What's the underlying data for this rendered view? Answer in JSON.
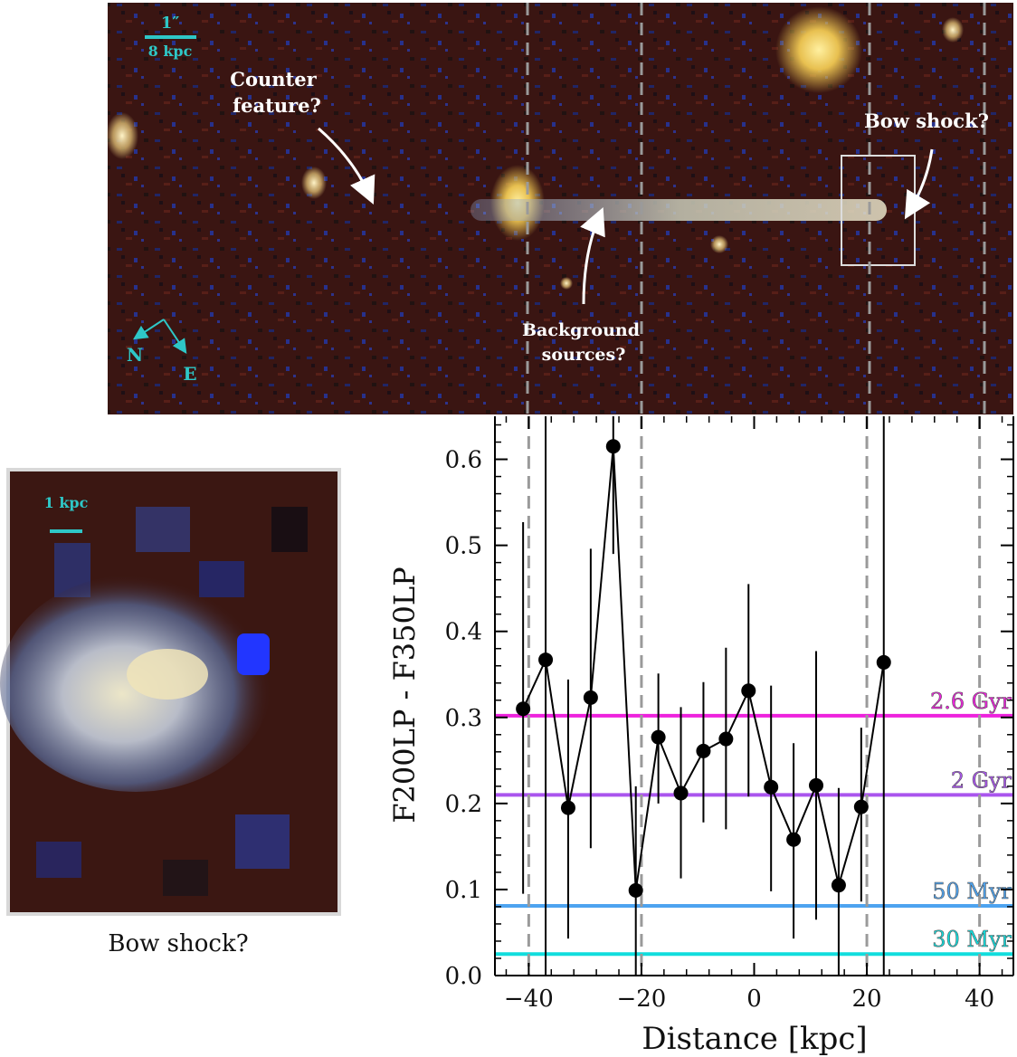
{
  "top_image": {
    "scale_bar_angle": "1″",
    "scale_bar_kpc": "8 kpc",
    "label_counter": [
      "Counter",
      "feature?"
    ],
    "label_bow": "Bow shock?",
    "label_background": [
      "Background",
      "sources?"
    ],
    "compass_n": "N",
    "compass_e": "E"
  },
  "inset": {
    "scale_label": "1 kpc",
    "caption": "Bow shock?"
  },
  "colors": {
    "scale_cyan": "#2ec7c7",
    "gyr26": "#ee22dd",
    "gyr2": "#aa55ee",
    "myr50": "#4da3f0",
    "myr30": "#11dddd",
    "dashed": "#9a9a9a",
    "points": "#000000"
  },
  "chart_data": {
    "type": "scatter",
    "xlabel": "Distance [kpc]",
    "ylabel": "F200LP - F350LP",
    "xlim": [
      -46,
      46
    ],
    "ylim": [
      0.0,
      0.65
    ],
    "xticks": [
      -40,
      -20,
      0,
      20,
      40
    ],
    "xtick_labels": [
      "−40",
      "−20",
      "0",
      "20",
      "40"
    ],
    "yticks": [
      0.0,
      0.1,
      0.2,
      0.3,
      0.4,
      0.5,
      0.6
    ],
    "ytick_labels": [
      "0.0",
      "0.1",
      "0.2",
      "0.3",
      "0.4",
      "0.5",
      "0.6"
    ],
    "x": [
      -41,
      -37,
      -33,
      -29,
      -25,
      -21,
      -17,
      -13,
      -9,
      -5,
      -1,
      3,
      7,
      11,
      15,
      19,
      23
    ],
    "y": [
      0.31,
      0.367,
      0.195,
      0.323,
      0.615,
      0.099,
      0.277,
      0.212,
      0.261,
      0.275,
      0.331,
      0.219,
      0.158,
      0.221,
      0.105,
      0.196,
      0.364
    ],
    "yerr_low": [
      0.095,
      0.0,
      0.043,
      0.148,
      0.49,
      0.0,
      0.2,
      0.113,
      0.178,
      0.17,
      0.208,
      0.098,
      0.043,
      0.065,
      0.0,
      0.086,
      0.0
    ],
    "yerr_high": [
      0.527,
      0.65,
      0.344,
      0.496,
      0.65,
      0.22,
      0.351,
      0.312,
      0.341,
      0.381,
      0.455,
      0.337,
      0.27,
      0.377,
      0.218,
      0.288,
      0.65
    ],
    "reference_lines": [
      {
        "name": "2.6 Gyr",
        "y": 0.302,
        "color": "#ee22dd"
      },
      {
        "name": "2 Gyr",
        "y": 0.21,
        "color": "#aa55ee"
      },
      {
        "name": "50 Myr",
        "y": 0.081,
        "color": "#4da3f0"
      },
      {
        "name": "30 Myr",
        "y": 0.025,
        "color": "#11dddd"
      }
    ],
    "vlines": [
      -40,
      -20,
      20,
      40
    ]
  }
}
